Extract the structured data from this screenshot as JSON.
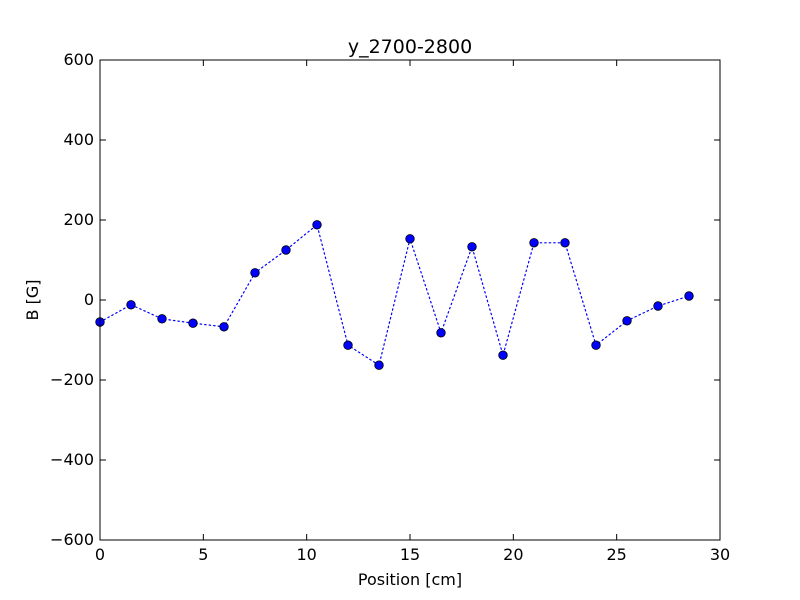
{
  "chart_data": {
    "type": "line",
    "title": "y_2700-2800",
    "xlabel": "Position [cm]",
    "ylabel": "B [G]",
    "xlim": [
      0,
      30
    ],
    "ylim": [
      -600,
      600
    ],
    "x_ticks": [
      0,
      5,
      10,
      15,
      20,
      25,
      30
    ],
    "y_ticks": [
      -600,
      -400,
      -200,
      0,
      200,
      400,
      600
    ],
    "x_tick_labels": [
      "0",
      "5",
      "10",
      "15",
      "20",
      "25",
      "30"
    ],
    "y_tick_labels": [
      "−600",
      "−400",
      "−200",
      "0",
      "200",
      "400",
      "600"
    ],
    "grid": false,
    "series": [
      {
        "color": "#0000ff",
        "line_style": "dotted",
        "marker": "circle",
        "x": [
          0,
          1.5,
          3,
          4.5,
          6,
          7.5,
          9,
          10.5,
          12,
          13.5,
          15,
          16.5,
          18,
          19.5,
          21,
          22.5,
          24,
          25.5,
          27,
          28.5
        ],
        "y": [
          -55,
          -12,
          -47,
          -58,
          -67,
          68,
          125,
          188,
          -113,
          -163,
          153,
          -82,
          133,
          -138,
          143,
          143,
          -113,
          -52,
          -15,
          10
        ]
      }
    ]
  }
}
